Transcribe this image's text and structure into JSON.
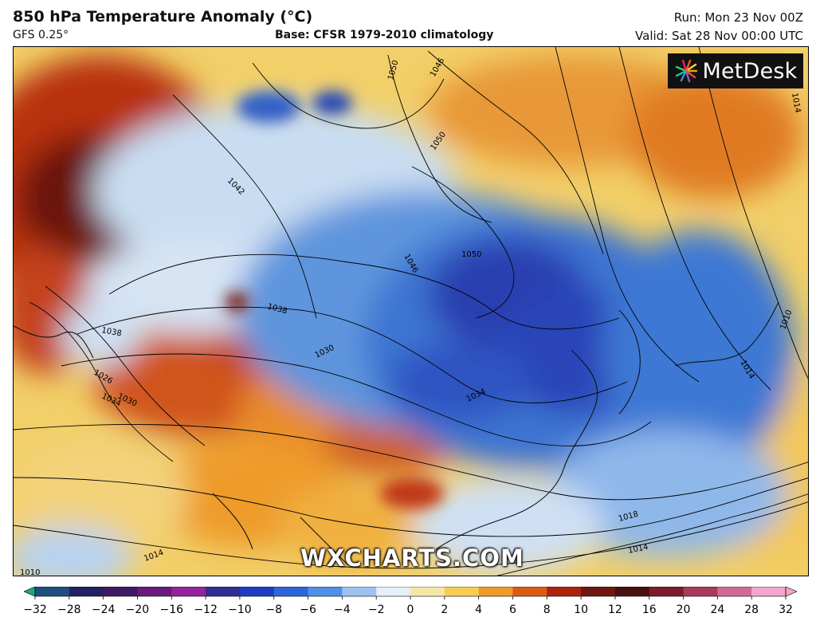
{
  "header": {
    "title": "850 hPa Temperature Anomaly (°C)",
    "model": "GFS 0.25°",
    "base": "Base: CFSR 1979-2010 climatology",
    "run": "Run: Mon 23 Nov 00Z",
    "valid": "Valid: Sat 28 Nov 00:00 UTC"
  },
  "logo": {
    "text": "MetDesk",
    "icon": "metdesk-burst-icon"
  },
  "watermark": "WXCHARTS.COM",
  "isobar_labels": [
    "1050",
    "1046",
    "1050",
    "1042",
    "1046",
    "1050",
    "1038",
    "1038",
    "1030",
    "1034",
    "1034",
    "1030",
    "1026",
    "1018",
    "1014",
    "1014",
    "1010",
    "1014",
    "1010",
    "1014"
  ],
  "colorbar": {
    "ticks": [
      "−32",
      "−28",
      "−24",
      "−20",
      "−16",
      "−12",
      "−10",
      "−8",
      "−6",
      "−4",
      "−2",
      "0",
      "2",
      "4",
      "6",
      "8",
      "10",
      "12",
      "16",
      "20",
      "24",
      "28",
      "32"
    ],
    "colors": [
      "#1aa884",
      "#1f4f7e",
      "#222262",
      "#3f1b63",
      "#6a1a7e",
      "#94249a",
      "#2f2e94",
      "#1f3cc0",
      "#2c66d8",
      "#4f8fe6",
      "#9cc3ef",
      "#e6eef8",
      "#f6e7a6",
      "#f6cc54",
      "#ee9b2c",
      "#d85b16",
      "#aa2410",
      "#6e1710",
      "#4a1010",
      "#7a1d2d",
      "#a83a5a",
      "#d36a95",
      "#f3a6cc"
    ]
  }
}
